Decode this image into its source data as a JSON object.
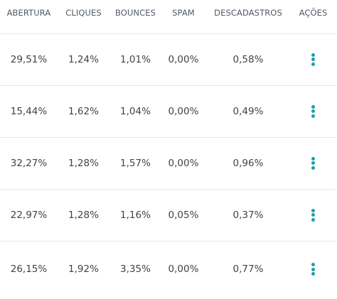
{
  "accent_color": "#1ba0a8",
  "table": {
    "headers": [
      "ABERTURA",
      "CLIQUES",
      "BOUNCES",
      "SPAM",
      "DESCADASTROS",
      "AÇÕES"
    ],
    "rows": [
      {
        "abertura": "29,51%",
        "cliques": "1,24%",
        "bounces": "1,01%",
        "spam": "0,00%",
        "descadastros": "0,58%",
        "acoes_icon": "more-vertical-icon"
      },
      {
        "abertura": "15,44%",
        "cliques": "1,62%",
        "bounces": "1,04%",
        "spam": "0,00%",
        "descadastros": "0,49%",
        "acoes_icon": "more-vertical-icon"
      },
      {
        "abertura": "32,27%",
        "cliques": "1,28%",
        "bounces": "1,57%",
        "spam": "0,00%",
        "descadastros": "0,96%",
        "acoes_icon": "more-vertical-icon"
      },
      {
        "abertura": "22,97%",
        "cliques": "1,28%",
        "bounces": "1,16%",
        "spam": "0,05%",
        "descadastros": "0,37%",
        "acoes_icon": "more-vertical-icon"
      },
      {
        "abertura": "26,15%",
        "cliques": "1,92%",
        "bounces": "3,35%",
        "spam": "0,00%",
        "descadastros": "0,77%",
        "acoes_icon": "more-vertical-icon"
      }
    ]
  }
}
